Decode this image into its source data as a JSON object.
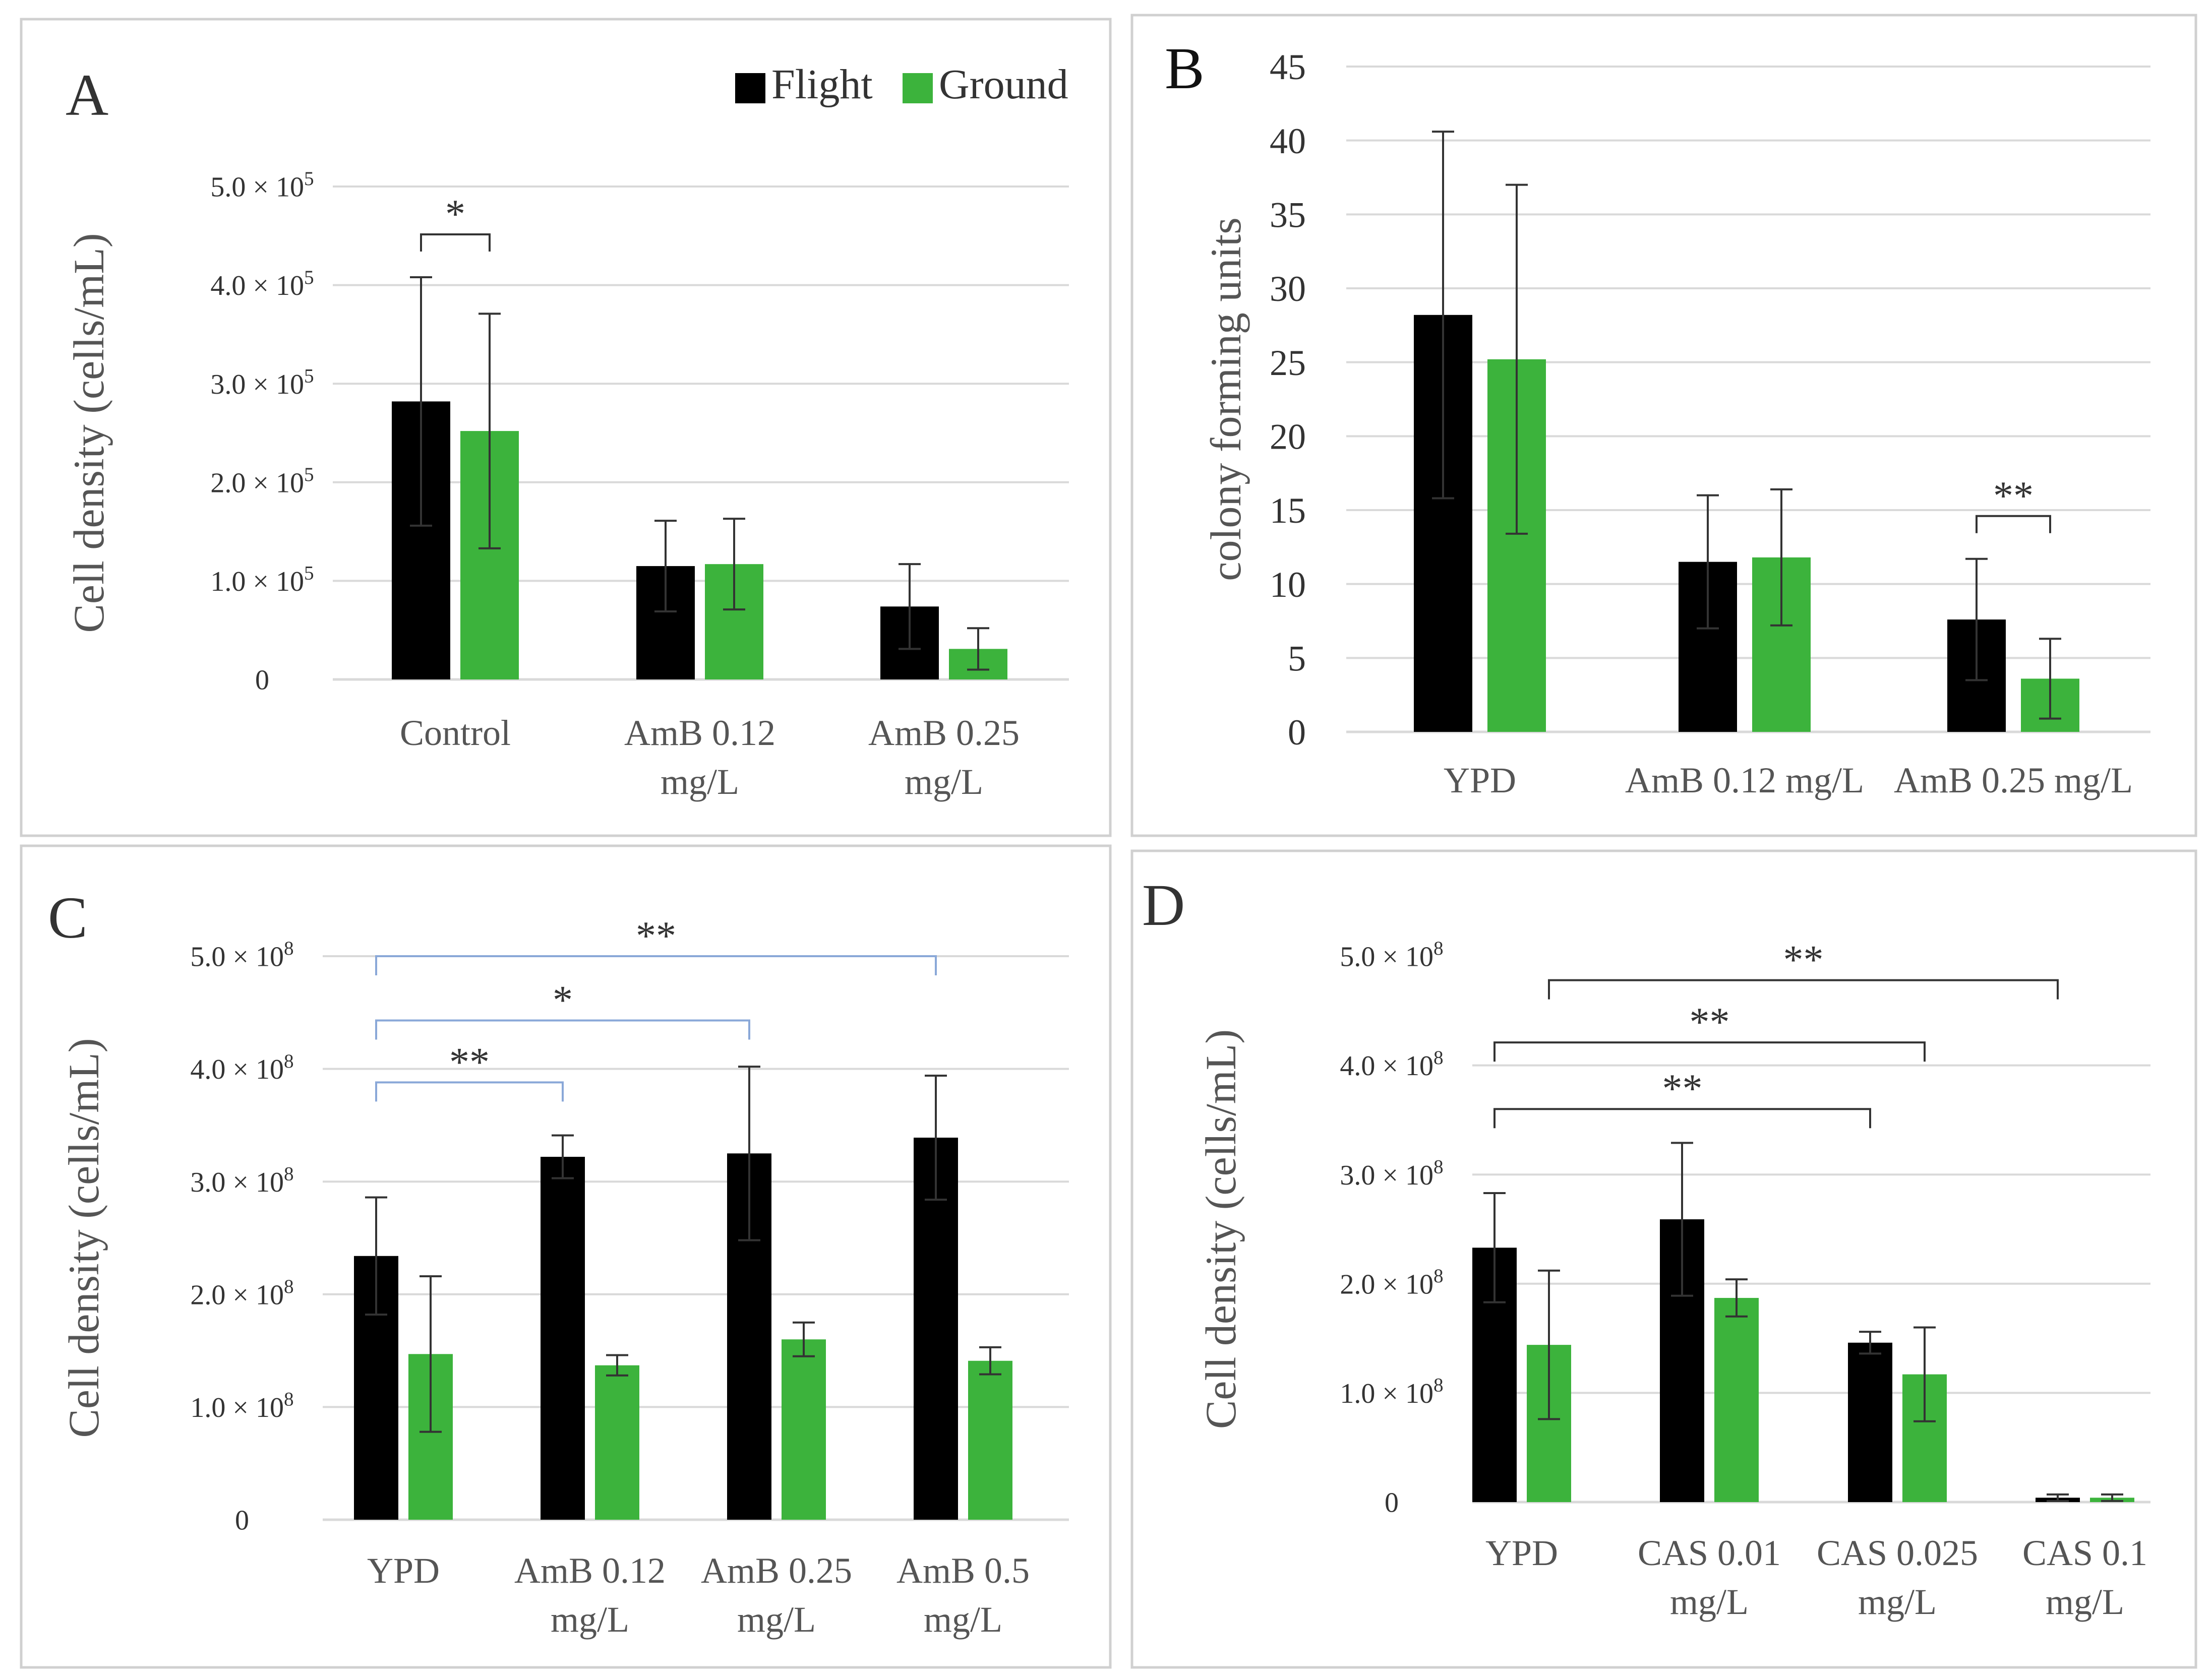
{
  "legend": {
    "items": [
      {
        "label": "Flight",
        "color": "#000000"
      },
      {
        "label": "Ground",
        "color": "#3cb33c"
      }
    ]
  },
  "colors": {
    "flight": "#000000",
    "ground": "#3cb33c",
    "grid": "#d9d9d9",
    "frame": "#d0d0d0",
    "bracket": "#8aa8d8"
  },
  "chart_data": [
    {
      "panel": "A",
      "type": "bar",
      "ylabel": "Cell density (cells/mL)",
      "ylim": [
        0,
        500000
      ],
      "yticks": [
        {
          "value": 0,
          "label": "0"
        },
        {
          "value": 100000,
          "label": "1.0 × 10⁵"
        },
        {
          "value": 200000,
          "label": "2.0 × 10⁵"
        },
        {
          "value": 300000,
          "label": "3.0 × 10⁵"
        },
        {
          "value": 400000,
          "label": "4.0 × 10⁵"
        },
        {
          "value": 500000,
          "label": "5.0 × 10⁵"
        }
      ],
      "categories": [
        [
          "Control"
        ],
        [
          "AmB 0.12",
          "mg/L"
        ],
        [
          "AmB 0.25",
          "mg/L"
        ]
      ],
      "series": [
        {
          "name": "Flight",
          "values": [
            282000,
            115000,
            74000
          ],
          "errors": [
            126000,
            46000,
            43000
          ]
        },
        {
          "name": "Ground",
          "values": [
            252000,
            117000,
            31000
          ],
          "errors": [
            119000,
            46000,
            21000
          ]
        }
      ],
      "significance": [
        {
          "label": "*",
          "from": [
            0,
            0
          ],
          "to": [
            0,
            1
          ]
        }
      ]
    },
    {
      "panel": "B",
      "type": "bar",
      "ylabel": "colony forming units",
      "ylim": [
        0,
        45
      ],
      "yticks": [
        {
          "value": 0,
          "label": "0"
        },
        {
          "value": 5,
          "label": "5"
        },
        {
          "value": 10,
          "label": "10"
        },
        {
          "value": 15,
          "label": "15"
        },
        {
          "value": 20,
          "label": "20"
        },
        {
          "value": 25,
          "label": "25"
        },
        {
          "value": 30,
          "label": "30"
        },
        {
          "value": 35,
          "label": "35"
        },
        {
          "value": 40,
          "label": "40"
        },
        {
          "value": 45,
          "label": "45"
        }
      ],
      "categories": [
        [
          "YPD"
        ],
        [
          "AmB 0.12 mg/L"
        ],
        [
          "AmB 0.25 mg/L"
        ]
      ],
      "series": [
        {
          "name": "Flight",
          "values": [
            28.2,
            11.5,
            7.6
          ],
          "errors": [
            12.4,
            4.5,
            4.1
          ]
        },
        {
          "name": "Ground",
          "values": [
            25.2,
            11.8,
            3.6
          ],
          "errors": [
            11.8,
            4.6,
            2.7
          ]
        }
      ],
      "significance": [
        {
          "label": "**",
          "from": [
            2,
            0
          ],
          "to": [
            2,
            1
          ]
        }
      ]
    },
    {
      "panel": "C",
      "type": "bar",
      "ylabel": "Cell density (cells/mL)",
      "ylim": [
        0,
        500000000
      ],
      "yticks": [
        {
          "value": 0,
          "label": "0"
        },
        {
          "value": 100000000,
          "label": "1.0 × 10⁸"
        },
        {
          "value": 200000000,
          "label": "2.0 × 10⁸"
        },
        {
          "value": 300000000,
          "label": "3.0 × 10⁸"
        },
        {
          "value": 400000000,
          "label": "4.0 × 10⁸"
        },
        {
          "value": 500000000,
          "label": "5.0 × 10⁸"
        }
      ],
      "categories": [
        [
          "YPD"
        ],
        [
          "AmB 0.12",
          "mg/L"
        ],
        [
          "AmB 0.25",
          "mg/L"
        ],
        [
          "AmB 0.5",
          "mg/L"
        ]
      ],
      "series": [
        {
          "name": "Flight",
          "values": [
            234000000,
            322000000,
            325000000,
            339000000
          ],
          "errors": [
            52000000,
            19000000,
            77000000,
            55000000
          ]
        },
        {
          "name": "Ground",
          "values": [
            147000000,
            137000000,
            160000000,
            141000000
          ],
          "errors": [
            69000000,
            9000000,
            15000000,
            12000000
          ]
        }
      ],
      "significance": [
        {
          "label": "**",
          "from": [
            0,
            0
          ],
          "to": [
            3,
            0
          ],
          "level": 500000000
        },
        {
          "label": "*",
          "from": [
            0,
            0
          ],
          "to": [
            2,
            0
          ],
          "level": 443000000
        },
        {
          "label": "**",
          "from": [
            0,
            0
          ],
          "to": [
            1,
            0
          ],
          "level": 388000000
        }
      ]
    },
    {
      "panel": "D",
      "type": "bar",
      "ylabel": "Cell density (cells/mL)",
      "ylim": [
        0,
        500000000
      ],
      "yticks": [
        {
          "value": 0,
          "label": "0"
        },
        {
          "value": 100000000,
          "label": "1.0 × 10⁸"
        },
        {
          "value": 200000000,
          "label": "2.0 × 10⁸"
        },
        {
          "value": 300000000,
          "label": "3.0 × 10⁸"
        },
        {
          "value": 400000000,
          "label": "4.0 × 10⁸"
        },
        {
          "value": 500000000,
          "label": "5.0 × 10⁸"
        }
      ],
      "categories": [
        [
          "YPD"
        ],
        [
          "CAS 0.01",
          "mg/L"
        ],
        [
          "CAS 0.025",
          "mg/L"
        ],
        [
          "CAS 0.1",
          "mg/L"
        ]
      ],
      "series": [
        {
          "name": "Flight",
          "values": [
            233000000,
            259000000,
            146000000,
            4000000
          ],
          "errors": [
            50000000,
            70000000,
            10000000,
            3000000
          ]
        },
        {
          "name": "Ground",
          "values": [
            144000000,
            187000000,
            117000000,
            4000000
          ],
          "errors": [
            68000000,
            17000000,
            43000000,
            3000000
          ]
        }
      ],
      "significance": [
        {
          "label": "**",
          "from": [
            0,
            1
          ],
          "to": [
            3,
            0
          ],
          "level": 478000000
        },
        {
          "label": "**",
          "from": [
            0,
            0
          ],
          "to": [
            2,
            1
          ],
          "level": 421000000
        },
        {
          "label": "**",
          "from": [
            0,
            0
          ],
          "to": [
            2,
            0
          ],
          "level": 360000000
        }
      ]
    }
  ]
}
